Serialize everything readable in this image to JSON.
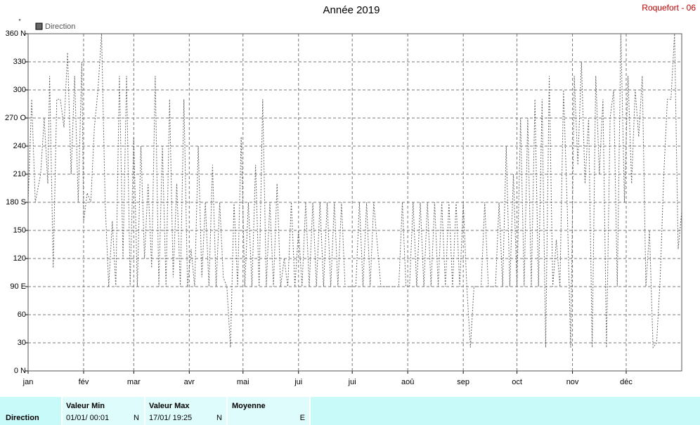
{
  "chart_data": {
    "type": "line",
    "title": "Année 2019",
    "station": "Roquefort - 06",
    "y_unit": "°",
    "xlim": [
      0,
      365
    ],
    "xticks": [
      {
        "value": 0,
        "label": "jan"
      },
      {
        "value": 31,
        "label": "fév"
      },
      {
        "value": 59,
        "label": "mar"
      },
      {
        "value": 90,
        "label": "avr"
      },
      {
        "value": 120,
        "label": "mai"
      },
      {
        "value": 151,
        "label": "jui"
      },
      {
        "value": 181,
        "label": "jui"
      },
      {
        "value": 212,
        "label": "aoû"
      },
      {
        "value": 243,
        "label": "sep"
      },
      {
        "value": 273,
        "label": "oct"
      },
      {
        "value": 304,
        "label": "nov"
      },
      {
        "value": 334,
        "label": "déc"
      }
    ],
    "ylim": [
      0,
      360
    ],
    "yticks": [
      {
        "value": 0,
        "label": "0 N"
      },
      30,
      60,
      {
        "value": 90,
        "label": "90 E"
      },
      120,
      150,
      {
        "value": 180,
        "label": "180 S"
      },
      210,
      240,
      {
        "value": 270,
        "label": "270 O"
      },
      300,
      330,
      {
        "value": 360,
        "label": "360 N"
      }
    ],
    "grid": true,
    "legend": "top-left",
    "x": [
      0,
      2,
      4,
      7,
      9,
      11,
      12,
      14,
      16,
      18,
      20,
      22,
      24,
      26,
      28,
      30,
      31,
      33,
      35,
      37,
      39,
      41,
      43,
      45,
      47,
      49,
      51,
      53,
      55,
      57,
      59,
      61,
      63,
      65,
      67,
      69,
      71,
      73,
      75,
      77,
      79,
      81,
      83,
      85,
      87,
      89,
      91,
      93,
      95,
      97,
      99,
      101,
      103,
      105,
      107,
      109,
      111,
      113,
      115,
      117,
      119,
      121,
      123,
      125,
      127,
      129,
      131,
      133,
      135,
      137,
      139,
      141,
      143,
      145,
      147,
      149,
      151,
      153,
      155,
      157,
      159,
      161,
      163,
      165,
      167,
      169,
      171,
      173,
      175,
      177,
      183,
      185,
      187,
      189,
      191,
      193,
      197,
      201,
      207,
      209,
      211,
      213,
      215,
      217,
      219,
      221,
      223,
      225,
      227,
      229,
      231,
      233,
      235,
      237,
      239,
      241,
      243,
      245,
      247,
      249,
      253,
      255,
      257,
      261,
      263,
      265,
      267,
      269,
      271,
      273,
      275,
      277,
      279,
      281,
      283,
      285,
      287,
      289,
      291,
      293,
      295,
      297,
      299,
      301,
      303,
      305,
      307,
      309,
      311,
      313,
      315,
      317,
      319,
      321,
      323,
      325,
      327,
      329,
      331,
      333,
      335,
      337,
      339,
      341,
      343,
      345,
      347,
      349,
      351,
      353,
      355,
      357,
      359,
      361,
      363,
      365
    ],
    "series": [
      {
        "name": "Direction",
        "color": "#666666",
        "values": [
          180,
          290,
          180,
          210,
          270,
          200,
          315,
          110,
          290,
          290,
          260,
          340,
          210,
          315,
          180,
          330,
          160,
          190,
          180,
          260,
          300,
          360,
          180,
          90,
          160,
          90,
          315,
          120,
          315,
          90,
          250,
          90,
          240,
          120,
          200,
          110,
          315,
          90,
          240,
          90,
          290,
          100,
          200,
          90,
          290,
          90,
          130,
          90,
          240,
          100,
          180,
          90,
          220,
          90,
          180,
          100,
          90,
          25,
          180,
          90,
          250,
          90,
          180,
          90,
          220,
          90,
          290,
          90,
          180,
          90,
          200,
          90,
          120,
          90,
          180,
          90,
          150,
          90,
          180,
          90,
          180,
          90,
          180,
          90,
          180,
          90,
          180,
          90,
          180,
          90,
          90,
          180,
          90,
          180,
          90,
          180,
          90,
          90,
          90,
          180,
          90,
          90,
          180,
          90,
          180,
          90,
          180,
          90,
          180,
          90,
          180,
          90,
          180,
          90,
          180,
          90,
          180,
          90,
          25,
          90,
          90,
          180,
          90,
          90,
          180,
          90,
          240,
          90,
          210,
          90,
          270,
          90,
          270,
          90,
          290,
          90,
          290,
          25,
          315,
          90,
          140,
          90,
          300,
          180,
          25,
          315,
          220,
          330,
          200,
          270,
          25,
          315,
          210,
          290,
          25,
          270,
          300,
          90,
          360,
          180,
          315,
          200,
          300,
          250,
          315,
          90,
          150,
          25,
          30,
          100,
          210,
          290,
          290,
          360,
          130,
          170
        ]
      }
    ]
  },
  "table": {
    "row_label": "Direction",
    "columns": [
      {
        "header": "Valeur Min",
        "date": "01/01/ 00:01",
        "dir": "N"
      },
      {
        "header": "Valeur Max",
        "date": "17/01/ 19:25",
        "dir": "N"
      },
      {
        "header": "Moyenne",
        "dir": "E"
      }
    ]
  }
}
